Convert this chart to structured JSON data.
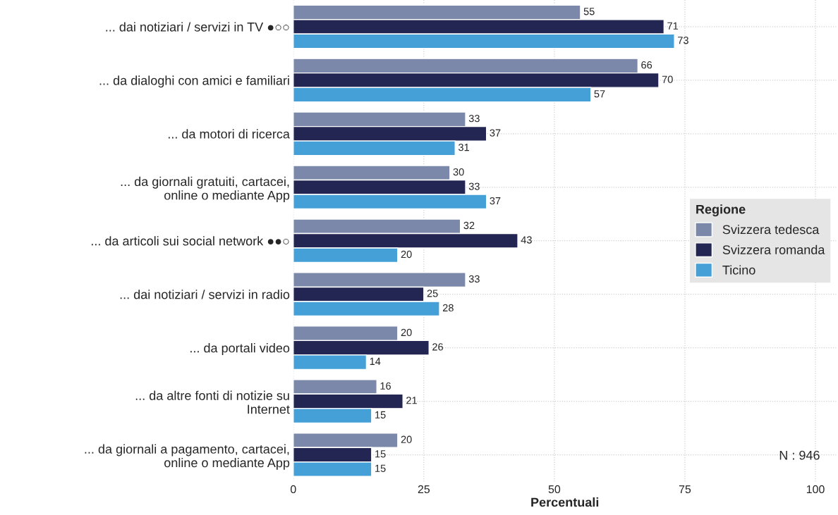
{
  "chart_data": {
    "type": "bar",
    "orientation": "horizontal",
    "xlabel": "Percentuali",
    "legend_title": "Regione",
    "categories": [
      "... dai notiziari / servizi in TV ●○○",
      "... da dialoghi con amici e familiari",
      "... da motori di ricerca",
      "... da giornali gratuiti, cartacei,\nonline o mediante App",
      "... da articoli sui social network ●●○",
      "... dai notiziari / servizi in radio",
      "... da portali video",
      "... da altre fonti di notizie su\nInternet",
      "... da giornali a pagamento, cartacei,\nonline o mediante App"
    ],
    "series": [
      {
        "name": "Svizzera tedesca",
        "color": "#7b88aa",
        "values": [
          55,
          66,
          33,
          30,
          32,
          33,
          20,
          16,
          20
        ]
      },
      {
        "name": "Svizzera romanda",
        "color": "#232652",
        "values": [
          71,
          70,
          37,
          33,
          43,
          25,
          26,
          21,
          15
        ]
      },
      {
        "name": "Ticino",
        "color": "#45a0d8",
        "values": [
          73,
          57,
          31,
          37,
          20,
          28,
          14,
          15,
          15
        ]
      }
    ],
    "xlim": [
      0,
      104
    ],
    "xticks": [
      0,
      25,
      50,
      75,
      100
    ],
    "grid": true,
    "legend": "right",
    "data_labels": true,
    "annotations": [
      "N : 946"
    ]
  }
}
